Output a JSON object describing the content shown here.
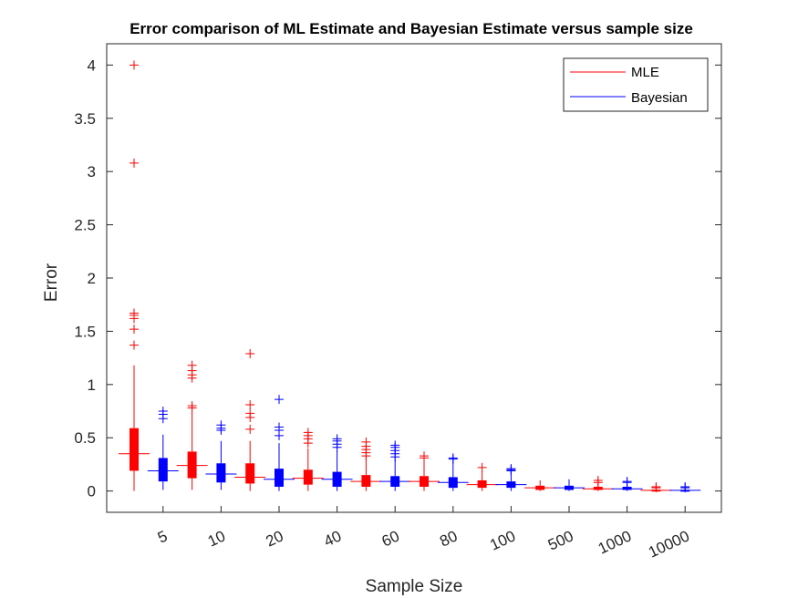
{
  "chart_data": {
    "type": "box",
    "title": "Error comparison of ML Estimate and Bayesian Estimate versus sample size",
    "xlabel": "Sample Size",
    "ylabel": "Error",
    "ylim": [
      -0.2,
      4.2
    ],
    "yticks": [
      0,
      0.5,
      1,
      1.5,
      2,
      2.5,
      3,
      3.5,
      4
    ],
    "ytick_labels": [
      "0",
      "0.5",
      "1",
      "1.5",
      "2",
      "2.5",
      "3",
      "3.5",
      "4"
    ],
    "xtick_labels": [
      "5",
      "10",
      "20",
      "40",
      "60",
      "80",
      "100",
      "500",
      "1000",
      "10000"
    ],
    "legend": {
      "position": "top-right",
      "entries": [
        {
          "name": "MLE",
          "color": "#ff0000"
        },
        {
          "name": "Bayesian",
          "color": "#0000ff"
        }
      ]
    },
    "colors": {
      "MLE": "#ff0000",
      "Bayesian": "#0000ff"
    },
    "series": [
      {
        "name": "MLE",
        "sample_size": "5",
        "q1": 0.19,
        "median": 0.35,
        "q3": 0.59,
        "whisker_low": 0.0,
        "whisker_high": 1.18,
        "outliers": [
          1.37,
          1.52,
          1.62,
          1.65,
          1.67,
          3.08,
          4.0
        ]
      },
      {
        "name": "Bayesian",
        "sample_size": "5",
        "q1": 0.09,
        "median": 0.19,
        "q3": 0.31,
        "whisker_low": 0.01,
        "whisker_high": 0.53,
        "outliers": [
          0.68,
          0.72,
          0.75
        ]
      },
      {
        "name": "MLE",
        "sample_size": "10",
        "q1": 0.12,
        "median": 0.24,
        "q3": 0.37,
        "whisker_low": 0.01,
        "whisker_high": 0.75,
        "outliers": [
          0.78,
          0.8,
          1.06,
          1.09,
          1.13,
          1.18
        ]
      },
      {
        "name": "Bayesian",
        "sample_size": "10",
        "q1": 0.08,
        "median": 0.16,
        "q3": 0.26,
        "whisker_low": 0.01,
        "whisker_high": 0.47,
        "outliers": [
          0.57,
          0.59,
          0.62
        ]
      },
      {
        "name": "MLE",
        "sample_size": "20",
        "q1": 0.07,
        "median": 0.13,
        "q3": 0.26,
        "whisker_low": 0.0,
        "whisker_high": 0.47,
        "outliers": [
          0.58,
          0.69,
          0.73,
          0.81,
          1.29
        ]
      },
      {
        "name": "Bayesian",
        "sample_size": "20",
        "q1": 0.04,
        "median": 0.11,
        "q3": 0.21,
        "whisker_low": 0.0,
        "whisker_high": 0.45,
        "outliers": [
          0.52,
          0.57,
          0.6,
          0.86
        ]
      },
      {
        "name": "MLE",
        "sample_size": "40",
        "q1": 0.06,
        "median": 0.12,
        "q3": 0.2,
        "whisker_low": 0.0,
        "whisker_high": 0.4,
        "outliers": [
          0.45,
          0.49,
          0.52,
          0.55
        ]
      },
      {
        "name": "Bayesian",
        "sample_size": "40",
        "q1": 0.04,
        "median": 0.11,
        "q3": 0.18,
        "whisker_low": 0.0,
        "whisker_high": 0.38,
        "outliers": [
          0.41,
          0.44,
          0.47,
          0.49
        ]
      },
      {
        "name": "MLE",
        "sample_size": "60",
        "q1": 0.04,
        "median": 0.09,
        "q3": 0.15,
        "whisker_low": 0.0,
        "whisker_high": 0.32,
        "outliers": [
          0.33,
          0.36,
          0.39,
          0.42,
          0.46
        ]
      },
      {
        "name": "Bayesian",
        "sample_size": "60",
        "q1": 0.04,
        "median": 0.09,
        "q3": 0.14,
        "whisker_low": 0.0,
        "whisker_high": 0.3,
        "outliers": [
          0.32,
          0.35,
          0.38,
          0.41,
          0.43
        ]
      },
      {
        "name": "MLE",
        "sample_size": "80",
        "q1": 0.04,
        "median": 0.09,
        "q3": 0.14,
        "whisker_low": 0.0,
        "whisker_high": 0.28,
        "outliers": [
          0.31,
          0.33
        ]
      },
      {
        "name": "Bayesian",
        "sample_size": "80",
        "q1": 0.03,
        "median": 0.08,
        "q3": 0.13,
        "whisker_low": 0.0,
        "whisker_high": 0.27,
        "outliers": [
          0.3,
          0.31
        ]
      },
      {
        "name": "MLE",
        "sample_size": "100",
        "q1": 0.03,
        "median": 0.06,
        "q3": 0.1,
        "whisker_low": 0.0,
        "whisker_high": 0.19,
        "outliers": [
          0.22
        ]
      },
      {
        "name": "Bayesian",
        "sample_size": "100",
        "q1": 0.03,
        "median": 0.06,
        "q3": 0.09,
        "whisker_low": 0.0,
        "whisker_high": 0.18,
        "outliers": [
          0.19,
          0.2,
          0.21
        ]
      },
      {
        "name": "MLE",
        "sample_size": "500",
        "q1": 0.01,
        "median": 0.03,
        "q3": 0.05,
        "whisker_low": 0.0,
        "whisker_high": 0.1,
        "outliers": []
      },
      {
        "name": "Bayesian",
        "sample_size": "500",
        "q1": 0.01,
        "median": 0.03,
        "q3": 0.05,
        "whisker_low": 0.0,
        "whisker_high": 0.11,
        "outliers": []
      },
      {
        "name": "MLE",
        "sample_size": "1000",
        "q1": 0.01,
        "median": 0.02,
        "q3": 0.04,
        "whisker_low": 0.0,
        "whisker_high": 0.07,
        "outliers": [
          0.08,
          0.1
        ]
      },
      {
        "name": "Bayesian",
        "sample_size": "1000",
        "q1": 0.01,
        "median": 0.02,
        "q3": 0.04,
        "whisker_low": 0.0,
        "whisker_high": 0.07,
        "outliers": [
          0.08,
          0.09
        ]
      },
      {
        "name": "MLE",
        "sample_size": "10000",
        "q1": 0.003,
        "median": 0.007,
        "q3": 0.012,
        "whisker_low": 0.0,
        "whisker_high": 0.025,
        "outliers": [
          0.03,
          0.04
        ]
      },
      {
        "name": "Bayesian",
        "sample_size": "10000",
        "q1": 0.003,
        "median": 0.006,
        "q3": 0.011,
        "whisker_low": 0.0,
        "whisker_high": 0.023,
        "outliers": [
          0.03,
          0.04
        ]
      }
    ]
  }
}
